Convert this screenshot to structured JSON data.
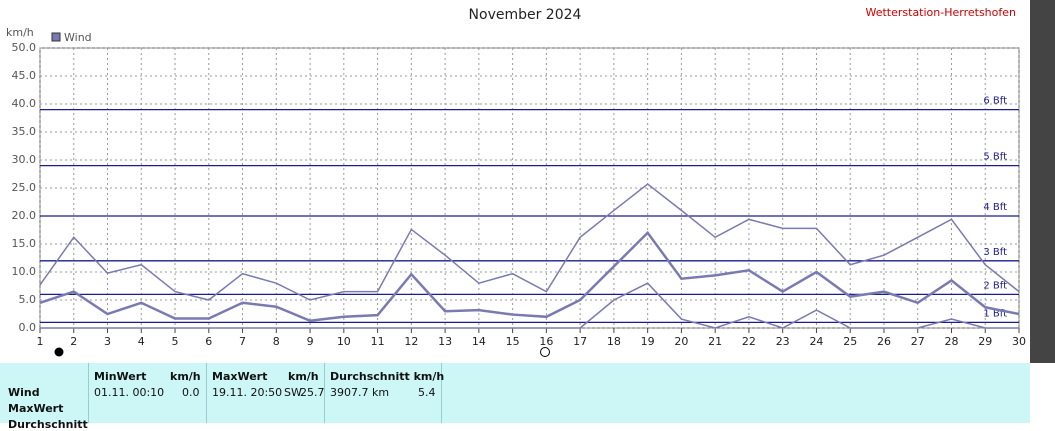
{
  "chart_data": {
    "type": "line",
    "title": "November 2024",
    "station": "Wetterstation-Herretshofen",
    "y_label": "km/h",
    "x": [
      1,
      2,
      3,
      4,
      5,
      6,
      7,
      8,
      9,
      10,
      11,
      12,
      13,
      14,
      15,
      16,
      17,
      18,
      19,
      20,
      21,
      22,
      23,
      24,
      25,
      26,
      27,
      28,
      29,
      30
    ],
    "xlim": [
      1,
      30
    ],
    "xticks": [
      1,
      2,
      3,
      4,
      5,
      6,
      7,
      8,
      9,
      10,
      11,
      12,
      13,
      14,
      15,
      16,
      17,
      18,
      19,
      20,
      21,
      22,
      23,
      24,
      25,
      26,
      27,
      28,
      29,
      30
    ],
    "ylim": [
      0,
      50
    ],
    "yticks": [
      {
        "value": 0,
        "label": "0.0"
      },
      {
        "value": 5,
        "label": "5.0"
      },
      {
        "value": 10,
        "label": "10.0"
      },
      {
        "value": 15,
        "label": "15.0"
      },
      {
        "value": 20,
        "label": "20.0"
      },
      {
        "value": 25,
        "label": "25.0"
      },
      {
        "value": 30,
        "label": "30.0"
      },
      {
        "value": 35,
        "label": "35.0"
      },
      {
        "value": 40,
        "label": "40.0"
      },
      {
        "value": 45,
        "label": "45.0"
      },
      {
        "value": 50,
        "label": "50.0"
      }
    ],
    "grid": true,
    "series": [
      {
        "name": "Wind",
        "color": "#7a7ab2",
        "width": 2.5,
        "values": [
          4.5,
          6.5,
          2.5,
          4.5,
          1.7,
          1.7,
          4.5,
          3.8,
          1.3,
          2,
          2.3,
          9.6,
          3,
          3.2,
          2.4,
          2,
          5,
          11,
          17,
          8.8,
          9.4,
          10.3,
          6.5,
          10,
          5.6,
          6.5,
          4.5,
          8.5,
          3.7,
          2.5
        ]
      },
      {
        "color": "#7a7ab2",
        "width": 1.5,
        "values": [
          7.7,
          16.2,
          9.8,
          11.3,
          6.5,
          5,
          9.7,
          8,
          5,
          6.5,
          6.5,
          17.6,
          13,
          8,
          9.7,
          6.5,
          16.2,
          21,
          25.7,
          21,
          16.2,
          19.4,
          17.8,
          17.8,
          11.3,
          13,
          16.2,
          19.4,
          11.3,
          6.5
        ]
      },
      {
        "color": "#7a7ab2",
        "width": 1.5,
        "values": [
          0,
          0,
          0,
          0,
          0,
          0,
          0,
          0,
          0,
          0,
          0,
          0,
          0,
          0,
          0,
          0,
          0,
          5,
          8,
          1.6,
          0,
          2,
          0,
          3.2,
          0,
          0,
          0,
          1.6,
          0,
          0
        ]
      }
    ],
    "reference_lines": [
      {
        "value": 1,
        "label": "1 Bft"
      },
      {
        "value": 6,
        "label": "2 Bft"
      },
      {
        "value": 12,
        "label": "3 Bft"
      },
      {
        "value": 20,
        "label": "4 Bft"
      },
      {
        "value": 29,
        "label": "5 Bft"
      },
      {
        "value": 39,
        "label": "6 Bft"
      }
    ],
    "reference_color": "#1c1c8e"
  },
  "table": {
    "headers": [
      [
        "MinWert",
        "km/h"
      ],
      [
        "MaxWert",
        "km/h"
      ],
      [
        "Durchschnitt km/h"
      ]
    ],
    "row_labels": [
      "Wind",
      "MaxWert",
      "Durchschnitt"
    ],
    "rows": [
      [
        [
          "01.11.  00:10",
          "0.0"
        ],
        [
          "19.11.  20:50",
          "SW",
          "25.7"
        ],
        [
          "3907.7 km",
          "5.4"
        ]
      ]
    ]
  }
}
